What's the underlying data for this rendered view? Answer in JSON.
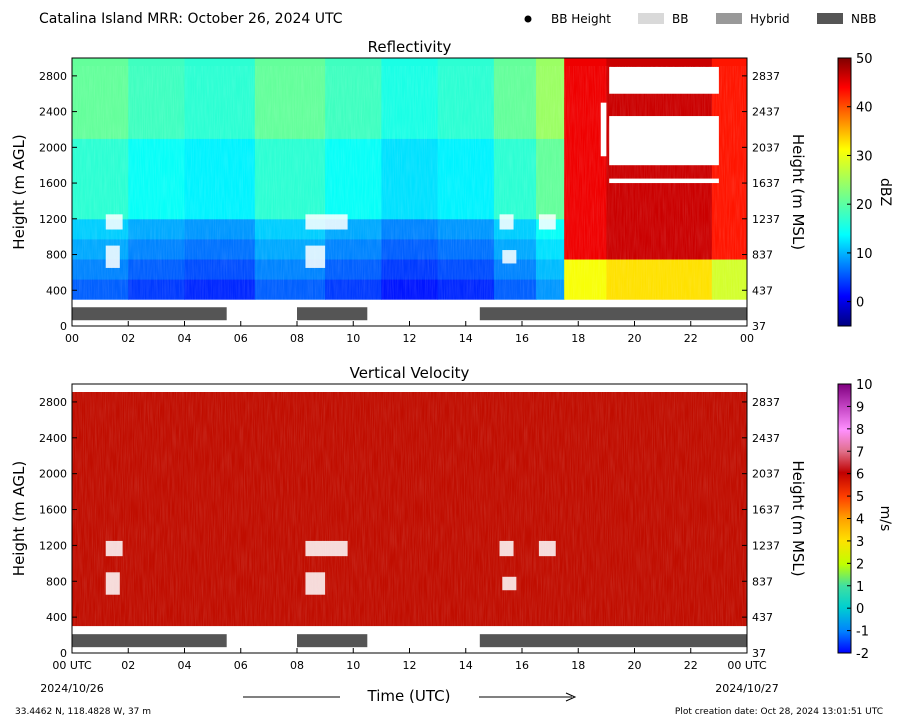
{
  "header": {
    "title": "Catalina Island MRR:  October 26, 2024 UTC",
    "legend": [
      {
        "label": "BB Height",
        "marker": "dot",
        "color": "#000000"
      },
      {
        "label": "BB",
        "marker": "rect",
        "color": "#d9d9d9"
      },
      {
        "label": "Hybrid",
        "marker": "rect",
        "color": "#999999"
      },
      {
        "label": "NBB",
        "marker": "rect",
        "color": "#555555"
      }
    ]
  },
  "footer": {
    "location": "33.4462 N, 118.4828 W, 37 m",
    "creation": "Plot creation date: Oct 28, 2024 13:01:51 UTC",
    "xlabel": "Time (UTC)"
  },
  "chart_data": [
    {
      "type": "heatmap",
      "title": "Reflectivity",
      "ylabel_left": "Height (m AGL)",
      "ylabel_right": "Height (m MSL)",
      "xlim": [
        0,
        24
      ],
      "ylim": [
        0,
        3000
      ],
      "x_ticks": [
        "00",
        "02",
        "04",
        "06",
        "08",
        "10",
        "12",
        "14",
        "16",
        "18",
        "20",
        "22",
        "00"
      ],
      "y_ticks_left": [
        0,
        400,
        800,
        1200,
        1600,
        2000,
        2400,
        2800
      ],
      "y_ticks_right": [
        37,
        437,
        837,
        1237,
        1637,
        2037,
        2437,
        2837
      ],
      "colorbar": {
        "label": "dBZ",
        "min": -5,
        "max": 50,
        "ticks": [
          0,
          10,
          20,
          30,
          40,
          50
        ],
        "colormap": "jet"
      },
      "regimes": [
        {
          "hour": 1,
          "value": 15
        },
        {
          "hour": 3,
          "value": 13
        },
        {
          "hour": 5,
          "value": 12
        },
        {
          "hour": 8,
          "value": 15
        },
        {
          "hour": 10,
          "value": 13
        },
        {
          "hour": 12,
          "value": 11
        },
        {
          "hour": 14,
          "value": 12
        },
        {
          "hour": 16,
          "value": 15
        },
        {
          "hour": 17,
          "value": 18
        },
        {
          "hour": 18,
          "value": 44
        },
        {
          "hour": 20,
          "value": 46
        },
        {
          "hour": 22,
          "value": 46
        },
        {
          "hour": 23.5,
          "value": 42
        }
      ],
      "bb_type_bars": [
        {
          "type": "NBB",
          "start": 0.0,
          "end": 5.5
        },
        {
          "type": "NBB",
          "start": 8.0,
          "end": 10.5
        },
        {
          "type": "NBB",
          "start": 14.5,
          "end": 24.0
        }
      ]
    },
    {
      "type": "heatmap",
      "title": "Vertical Velocity",
      "ylabel_left": "Height (m AGL)",
      "ylabel_right": "Height (m MSL)",
      "xlim": [
        0,
        24
      ],
      "ylim": [
        0,
        3000
      ],
      "x_ticks": [
        "00 UTC",
        "02",
        "04",
        "06",
        "08",
        "10",
        "12",
        "14",
        "16",
        "18",
        "20",
        "22",
        "00 UTC"
      ],
      "x_date_labels": [
        "2024/10/26",
        "2024/10/27"
      ],
      "y_ticks_left": [
        0,
        400,
        800,
        1200,
        1600,
        2000,
        2400,
        2800
      ],
      "y_ticks_right": [
        37,
        437,
        837,
        1237,
        1637,
        2037,
        2437,
        2837
      ],
      "colorbar": {
        "label": "m/s",
        "min": -2,
        "max": 10,
        "ticks": [
          -2,
          -1,
          0,
          1,
          2,
          3,
          4,
          5,
          6,
          7,
          8,
          9,
          10
        ],
        "colormap": "velocity"
      },
      "field_value": 6,
      "bb_type_bars": [
        {
          "type": "NBB",
          "start": 0.0,
          "end": 5.5
        },
        {
          "type": "NBB",
          "start": 8.0,
          "end": 10.5
        },
        {
          "type": "NBB",
          "start": 14.5,
          "end": 24.0
        }
      ]
    }
  ]
}
